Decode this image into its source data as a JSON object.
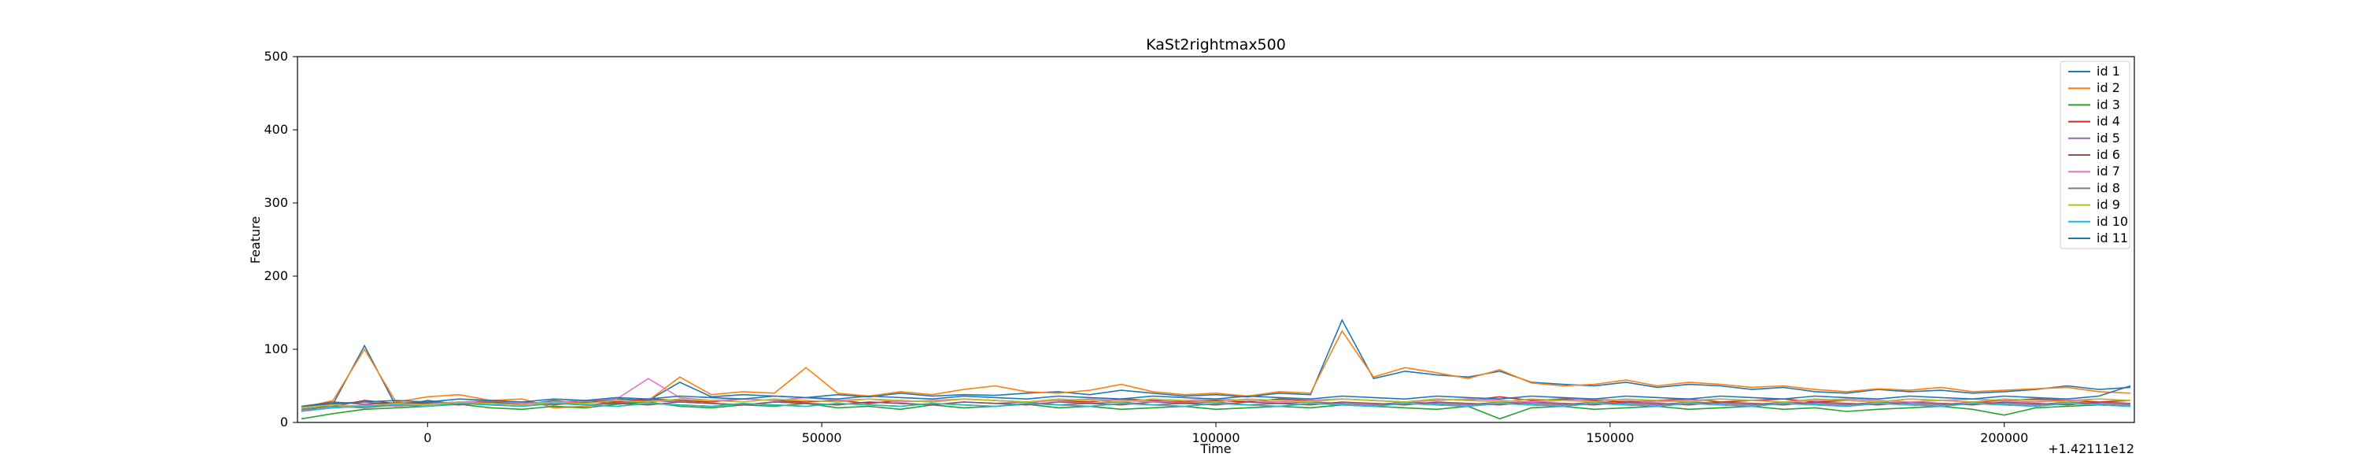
{
  "chart_data": {
    "type": "line",
    "title": "KaSt2rightmax500",
    "xlabel": "Time",
    "ylabel": "Feature",
    "x_offset_label": "+1.42111e12",
    "xlim": [
      -16500,
      216500
    ],
    "ylim": [
      0,
      500
    ],
    "xticks": [
      0,
      50000,
      100000,
      150000,
      200000
    ],
    "xtick_labels": [
      "0",
      "50000",
      "100000",
      "150000",
      "200000"
    ],
    "yticks": [
      0,
      100,
      200,
      300,
      400,
      500
    ],
    "ytick_labels": [
      "0",
      "100",
      "200",
      "300",
      "400",
      "500"
    ],
    "grid": false,
    "legend_position": "top-right",
    "x": [
      -16000,
      -12000,
      -8000,
      -4000,
      0,
      4000,
      8000,
      12000,
      16000,
      20000,
      24000,
      28000,
      32000,
      36000,
      40000,
      44000,
      48000,
      52000,
      56000,
      60000,
      64000,
      68000,
      72000,
      76000,
      80000,
      84000,
      88000,
      92000,
      96000,
      100000,
      104000,
      108000,
      112000,
      116000,
      120000,
      124000,
      128000,
      132000,
      136000,
      140000,
      144000,
      148000,
      152000,
      156000,
      160000,
      164000,
      168000,
      172000,
      176000,
      180000,
      184000,
      188000,
      192000,
      196000,
      200000,
      204000,
      208000,
      212000,
      216000
    ],
    "series": [
      {
        "name": "id 1",
        "color": "#1f77b4",
        "values": [
          15,
          25,
          105,
          22,
          30,
          25,
          28,
          24,
          30,
          26,
          32,
          30,
          55,
          35,
          38,
          36,
          34,
          38,
          35,
          40,
          36,
          38,
          37,
          40,
          42,
          38,
          44,
          40,
          36,
          38,
          35,
          40,
          38,
          140,
          60,
          70,
          65,
          62,
          70,
          55,
          52,
          50,
          55,
          48,
          52,
          50,
          45,
          48,
          42,
          40,
          45,
          42,
          44,
          40,
          42,
          45,
          50,
          45,
          48
        ]
      },
      {
        "name": "id 2",
        "color": "#ff7f0e",
        "values": [
          20,
          30,
          100,
          28,
          35,
          38,
          30,
          32,
          20,
          22,
          28,
          30,
          62,
          38,
          42,
          40,
          75,
          40,
          36,
          42,
          38,
          45,
          50,
          42,
          40,
          44,
          52,
          42,
          38,
          40,
          36,
          42,
          40,
          125,
          62,
          75,
          68,
          60,
          72,
          54,
          50,
          52,
          58,
          50,
          55,
          52,
          48,
          50,
          45,
          42,
          46,
          44,
          48,
          42,
          44,
          46,
          48,
          42,
          40
        ]
      },
      {
        "name": "id 3",
        "color": "#2ca02c",
        "values": [
          5,
          12,
          18,
          20,
          22,
          25,
          20,
          18,
          22,
          20,
          25,
          28,
          22,
          20,
          24,
          22,
          26,
          20,
          22,
          18,
          24,
          20,
          22,
          25,
          20,
          22,
          18,
          20,
          22,
          18,
          20,
          22,
          20,
          24,
          22,
          20,
          18,
          22,
          5,
          20,
          22,
          18,
          20,
          22,
          18,
          20,
          22,
          18,
          20,
          15,
          18,
          20,
          22,
          18,
          10,
          20,
          22,
          24,
          22
        ]
      },
      {
        "name": "id 4",
        "color": "#d62728",
        "values": [
          18,
          22,
          30,
          26,
          28,
          25,
          30,
          28,
          26,
          30,
          28,
          32,
          30,
          28,
          32,
          30,
          28,
          30,
          26,
          30,
          28,
          32,
          30,
          28,
          30,
          28,
          32,
          30,
          28,
          30,
          28,
          32,
          30,
          32,
          30,
          28,
          32,
          30,
          35,
          30,
          32,
          30,
          28,
          30,
          32,
          28,
          30,
          32,
          28,
          30,
          28,
          32,
          30,
          28,
          30,
          32,
          30,
          28,
          30
        ]
      },
      {
        "name": "id 5",
        "color": "#9467bd",
        "values": [
          20,
          25,
          28,
          24,
          26,
          28,
          24,
          26,
          28,
          24,
          26,
          30,
          28,
          26,
          24,
          28,
          26,
          24,
          28,
          26,
          24,
          28,
          26,
          28,
          24,
          26,
          28,
          24,
          26,
          28,
          24,
          26,
          28,
          26,
          24,
          28,
          26,
          24,
          28,
          26,
          24,
          28,
          26,
          24,
          28,
          26,
          24,
          28,
          26,
          24,
          28,
          26,
          24,
          28,
          26,
          24,
          28,
          26,
          24
        ]
      },
      {
        "name": "id 6",
        "color": "#8c564b",
        "values": [
          22,
          28,
          25,
          27,
          26,
          24,
          28,
          26,
          24,
          28,
          26,
          24,
          28,
          26,
          24,
          28,
          26,
          24,
          28,
          26,
          24,
          28,
          26,
          24,
          28,
          26,
          24,
          28,
          26,
          24,
          28,
          26,
          24,
          28,
          26,
          24,
          28,
          26,
          24,
          28,
          26,
          24,
          28,
          26,
          24,
          28,
          26,
          24,
          28,
          26,
          24,
          28,
          26,
          24,
          28,
          26,
          24,
          28,
          26
        ]
      },
      {
        "name": "id 7",
        "color": "#e377c2",
        "values": [
          15,
          20,
          24,
          22,
          25,
          28,
          30,
          26,
          28,
          30,
          32,
          60,
          34,
          30,
          32,
          30,
          34,
          30,
          32,
          28,
          30,
          32,
          30,
          28,
          30,
          32,
          30,
          28,
          30,
          32,
          30,
          28,
          30,
          32,
          30,
          28,
          30,
          32,
          30,
          28,
          30,
          32,
          30,
          28,
          30,
          32,
          30,
          28,
          30,
          32,
          30,
          28,
          30,
          32,
          30,
          28,
          30,
          32,
          30
        ]
      },
      {
        "name": "id 8",
        "color": "#7f7f7f",
        "values": [
          18,
          22,
          20,
          24,
          22,
          26,
          24,
          22,
          26,
          24,
          22,
          26,
          24,
          22,
          26,
          24,
          22,
          26,
          24,
          22,
          26,
          24,
          22,
          26,
          24,
          22,
          26,
          24,
          22,
          26,
          24,
          22,
          26,
          24,
          22,
          26,
          24,
          22,
          26,
          24,
          22,
          26,
          24,
          22,
          26,
          24,
          22,
          26,
          24,
          22,
          26,
          24,
          22,
          26,
          24,
          22,
          26,
          24,
          22
        ]
      },
      {
        "name": "id 9",
        "color": "#bcbd22",
        "values": [
          20,
          24,
          22,
          26,
          24,
          28,
          26,
          24,
          28,
          26,
          30,
          28,
          32,
          30,
          28,
          32,
          30,
          28,
          32,
          30,
          28,
          32,
          30,
          28,
          32,
          30,
          28,
          32,
          30,
          28,
          32,
          30,
          28,
          32,
          30,
          28,
          32,
          30,
          28,
          32,
          30,
          28,
          32,
          30,
          28,
          32,
          30,
          28,
          32,
          30,
          28,
          32,
          30,
          28,
          32,
          30,
          28,
          32,
          30
        ]
      },
      {
        "name": "id 10",
        "color": "#17becf",
        "values": [
          16,
          20,
          22,
          24,
          22,
          26,
          24,
          22,
          26,
          24,
          22,
          26,
          24,
          22,
          26,
          24,
          22,
          26,
          24,
          22,
          26,
          24,
          22,
          26,
          24,
          22,
          26,
          24,
          22,
          26,
          24,
          22,
          26,
          24,
          22,
          26,
          24,
          22,
          26,
          24,
          22,
          26,
          24,
          22,
          26,
          24,
          22,
          26,
          24,
          22,
          26,
          24,
          22,
          26,
          24,
          22,
          26,
          24,
          22
        ]
      },
      {
        "name": "id 11",
        "color": "#1f77b4",
        "values": [
          22,
          26,
          28,
          30,
          28,
          32,
          30,
          28,
          32,
          30,
          34,
          32,
          36,
          34,
          32,
          36,
          34,
          32,
          36,
          34,
          32,
          36,
          34,
          32,
          36,
          34,
          32,
          36,
          34,
          32,
          36,
          34,
          32,
          36,
          34,
          32,
          36,
          34,
          32,
          36,
          34,
          32,
          36,
          34,
          32,
          36,
          34,
          32,
          36,
          34,
          32,
          36,
          34,
          32,
          36,
          34,
          32,
          36,
          50
        ]
      }
    ]
  }
}
